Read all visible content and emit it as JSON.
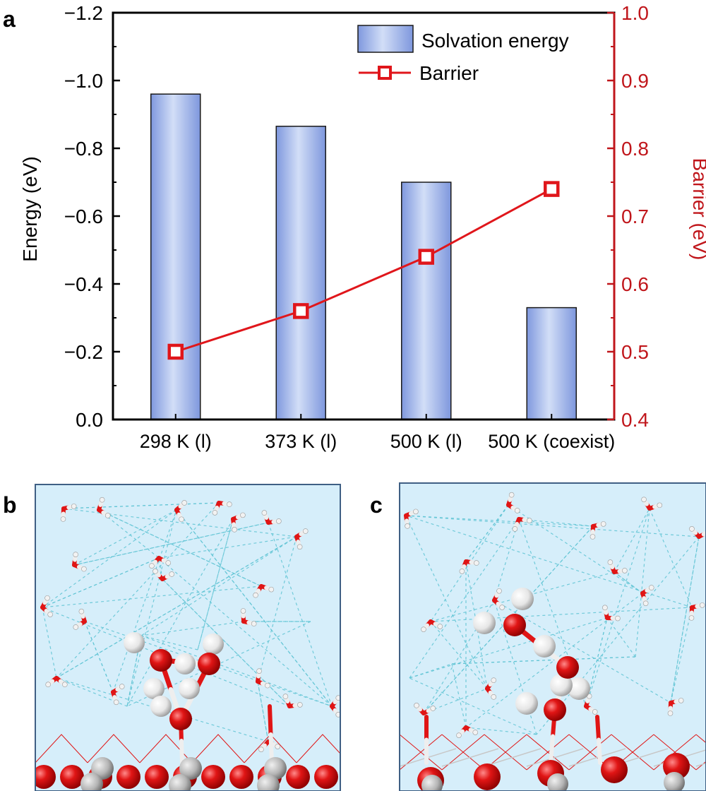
{
  "panels": {
    "a": "a",
    "b": "b",
    "c": "c"
  },
  "colors": {
    "bar_light": "#cfdcf6",
    "bar_dark": "#7e97dd",
    "barrier": "#e0161b",
    "right_axis": "#c0161b",
    "water_bg": "#d6eefa",
    "hbond": "#5fc4d4",
    "oxygen": "#e01515",
    "hydrogen": "#f4f4f4",
    "metal": "#b8b8b8"
  },
  "chart_data": {
    "type": "bar",
    "categories": [
      "298 K (l)",
      "373 K (l)",
      "500 K (l)",
      "500 K (coexist)"
    ],
    "left_axis": {
      "label": "Energy (eV)",
      "range": [
        0.0,
        -1.2
      ],
      "ticks": [
        "0.0",
        "−0.2",
        "−0.4",
        "−0.6",
        "−0.8",
        "−1.0",
        "−1.2"
      ]
    },
    "right_axis": {
      "label": "Barrier (eV)",
      "range": [
        0.4,
        1.0
      ],
      "ticks": [
        "0.4",
        "0.5",
        "0.6",
        "0.7",
        "0.8",
        "0.9",
        "1.0"
      ]
    },
    "series": [
      {
        "name": "Solvation energy",
        "type": "bar",
        "axis": "left",
        "values": [
          -0.96,
          -0.865,
          -0.7,
          -0.33
        ]
      },
      {
        "name": "Barrier",
        "type": "line",
        "axis": "right",
        "marker": "square",
        "values": [
          0.5,
          0.56,
          0.64,
          0.74
        ]
      }
    ],
    "legend": {
      "position": "top-right",
      "entries": [
        "Solvation energy",
        "Barrier"
      ]
    }
  }
}
